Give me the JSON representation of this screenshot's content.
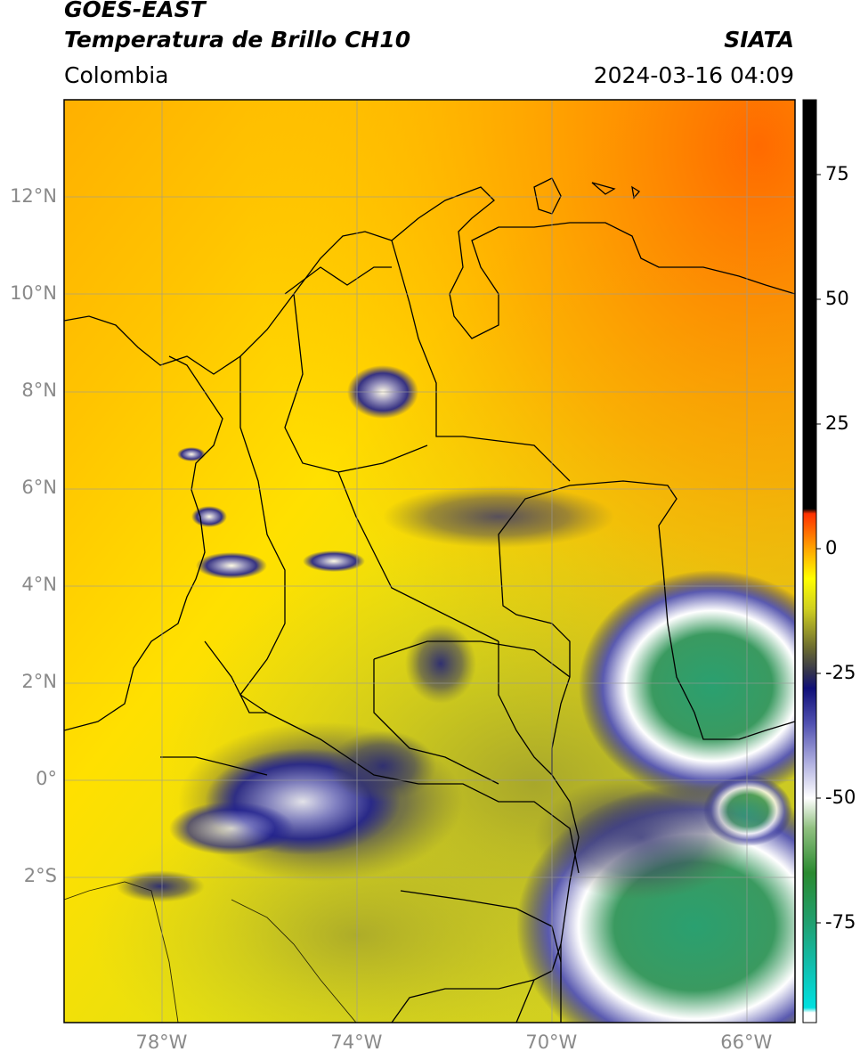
{
  "header": {
    "satellite": "GOES-EAST",
    "product": "Temperatura de Brillo CH10",
    "region": "Colombia",
    "agency": "SIATA",
    "datetime": "2024-03-16 04:09"
  },
  "map": {
    "lon_range": [
      -80,
      -65
    ],
    "lat_range": [
      -5,
      14
    ],
    "lon_ticks": [
      {
        "value": -78,
        "label": "78°W"
      },
      {
        "value": -74,
        "label": "74°W"
      },
      {
        "value": -70,
        "label": "70°W"
      },
      {
        "value": -66,
        "label": "66°W"
      }
    ],
    "lat_ticks": [
      {
        "value": 12,
        "label": "12°N"
      },
      {
        "value": 10,
        "label": "10°N"
      },
      {
        "value": 8,
        "label": "8°N"
      },
      {
        "value": 6,
        "label": "6°N"
      },
      {
        "value": 4,
        "label": "4°N"
      },
      {
        "value": 2,
        "label": "2°N"
      },
      {
        "value": 0,
        "label": "0°"
      },
      {
        "value": -2,
        "label": "2°S"
      }
    ],
    "grid": true
  },
  "colorbar": {
    "range": [
      -95,
      90
    ],
    "ticks": [
      {
        "value": 75,
        "label": "75"
      },
      {
        "value": 50,
        "label": "50"
      },
      {
        "value": 25,
        "label": "25"
      },
      {
        "value": 0,
        "label": "0"
      },
      {
        "value": -25,
        "label": "-25"
      },
      {
        "value": -50,
        "label": "-50"
      },
      {
        "value": -75,
        "label": "-75"
      }
    ],
    "stops": [
      {
        "value": -95,
        "color": "#ffffff"
      },
      {
        "value": -93,
        "color": "#ffffff"
      },
      {
        "value": -92,
        "color": "#00e0e0"
      },
      {
        "value": -84,
        "color": "#10c0b0"
      },
      {
        "value": -75,
        "color": "#20a070"
      },
      {
        "value": -65,
        "color": "#2a8a30"
      },
      {
        "value": -56,
        "color": "#90c080"
      },
      {
        "value": -50,
        "color": "#ffffff"
      },
      {
        "value": -43,
        "color": "#b0b0e0"
      },
      {
        "value": -35,
        "color": "#5050b0"
      },
      {
        "value": -28,
        "color": "#101078"
      },
      {
        "value": -25,
        "color": "#303050"
      },
      {
        "value": -20,
        "color": "#6a6a30"
      },
      {
        "value": -12,
        "color": "#d0d020"
      },
      {
        "value": -6,
        "color": "#ffff00"
      },
      {
        "value": 0,
        "color": "#ffa500"
      },
      {
        "value": 7,
        "color": "#ff3000"
      },
      {
        "value": 8,
        "color": "#000000"
      },
      {
        "value": 90,
        "color": "#000000"
      }
    ]
  }
}
